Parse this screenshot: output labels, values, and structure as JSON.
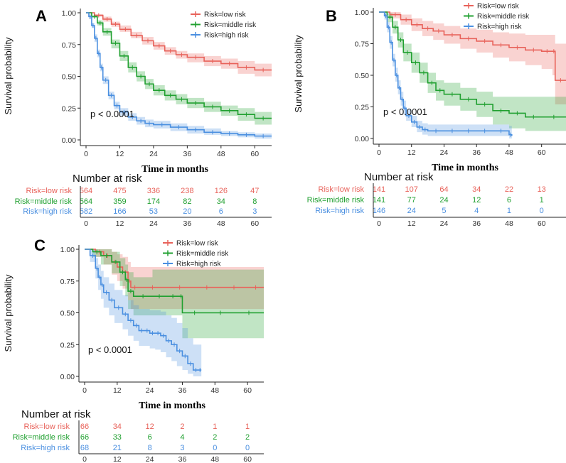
{
  "colors": {
    "low": "#E8625A",
    "middle": "#20A030",
    "high": "#4A8FE0"
  },
  "chart_data": [
    {
      "panel": "A",
      "type": "line",
      "title": "",
      "ylabel": "Survival probability",
      "xlabel": "Time in months",
      "xlim": [
        0,
        66
      ],
      "ylim": [
        0,
        1
      ],
      "xticks": [
        0,
        12,
        24,
        36,
        48,
        60
      ],
      "yticks": [
        "0.00",
        "0.25",
        "0.50",
        "0.75",
        "1.00"
      ],
      "pvalue": "p < 0.0001",
      "legend": [
        "Risk=low risk",
        "Risk=middle risk",
        "Risk=high risk"
      ],
      "series": [
        {
          "name": "Risk=low risk",
          "key": "low",
          "x": [
            0,
            3,
            6,
            9,
            12,
            16,
            20,
            24,
            28,
            32,
            36,
            42,
            48,
            54,
            60,
            66
          ],
          "y": [
            1,
            0.98,
            0.95,
            0.91,
            0.87,
            0.82,
            0.78,
            0.74,
            0.7,
            0.67,
            0.65,
            0.62,
            0.6,
            0.57,
            0.55,
            0.55
          ],
          "lower": [
            1,
            0.97,
            0.93,
            0.89,
            0.85,
            0.8,
            0.75,
            0.71,
            0.67,
            0.64,
            0.61,
            0.58,
            0.56,
            0.52,
            0.5,
            0.5
          ],
          "upper": [
            1,
            0.99,
            0.97,
            0.93,
            0.9,
            0.85,
            0.81,
            0.77,
            0.73,
            0.7,
            0.68,
            0.66,
            0.64,
            0.62,
            0.6,
            0.6
          ]
        },
        {
          "name": "Risk=middle risk",
          "key": "middle",
          "x": [
            0,
            2,
            4,
            6,
            9,
            12,
            15,
            18,
            21,
            24,
            28,
            32,
            36,
            42,
            48,
            54,
            60,
            66
          ],
          "y": [
            1,
            0.97,
            0.92,
            0.85,
            0.76,
            0.66,
            0.57,
            0.5,
            0.44,
            0.39,
            0.35,
            0.32,
            0.29,
            0.26,
            0.23,
            0.2,
            0.17,
            0.17
          ],
          "lower": [
            1,
            0.96,
            0.9,
            0.82,
            0.72,
            0.62,
            0.53,
            0.46,
            0.4,
            0.35,
            0.31,
            0.28,
            0.25,
            0.22,
            0.19,
            0.15,
            0.12,
            0.12
          ],
          "upper": [
            1,
            0.98,
            0.94,
            0.88,
            0.79,
            0.7,
            0.61,
            0.54,
            0.48,
            0.43,
            0.39,
            0.36,
            0.33,
            0.3,
            0.27,
            0.25,
            0.22,
            0.22
          ]
        },
        {
          "name": "Risk=high risk",
          "key": "high",
          "x": [
            0,
            1,
            2,
            3,
            4,
            5,
            6,
            8,
            10,
            12,
            15,
            18,
            21,
            24,
            30,
            36,
            42,
            48,
            54,
            60,
            66
          ],
          "y": [
            1,
            0.97,
            0.9,
            0.8,
            0.68,
            0.57,
            0.47,
            0.35,
            0.27,
            0.22,
            0.18,
            0.15,
            0.13,
            0.12,
            0.1,
            0.08,
            0.06,
            0.05,
            0.04,
            0.03,
            0.03
          ],
          "lower": [
            1,
            0.95,
            0.88,
            0.77,
            0.65,
            0.54,
            0.44,
            0.32,
            0.24,
            0.19,
            0.15,
            0.12,
            0.1,
            0.09,
            0.07,
            0.05,
            0.04,
            0.03,
            0.02,
            0.01,
            0.01
          ],
          "upper": [
            1,
            0.98,
            0.92,
            0.83,
            0.71,
            0.6,
            0.5,
            0.38,
            0.3,
            0.25,
            0.21,
            0.18,
            0.16,
            0.15,
            0.13,
            0.11,
            0.09,
            0.07,
            0.06,
            0.05,
            0.05
          ]
        }
      ],
      "risk_table": {
        "title": "Number at risk",
        "rows": [
          {
            "label": "Risk=low risk",
            "key": "low",
            "values": [
              "564",
              "475",
              "336",
              "238",
              "126",
              "47"
            ]
          },
          {
            "label": "Risk=middle risk",
            "key": "middle",
            "values": [
              "564",
              "359",
              "174",
              "82",
              "34",
              "8"
            ]
          },
          {
            "label": "Risk=high risk",
            "key": "high",
            "values": [
              "582",
              "166",
              "53",
              "20",
              "6",
              "3"
            ]
          }
        ]
      }
    },
    {
      "panel": "B",
      "type": "line",
      "title": "",
      "ylabel": "Survival probability",
      "xlabel": "Time in months",
      "xlim": [
        0,
        69
      ],
      "ylim": [
        0,
        1
      ],
      "xticks": [
        0,
        12,
        24,
        36,
        48,
        60
      ],
      "yticks": [
        "0.00",
        "0.25",
        "0.50",
        "0.75",
        "1.00"
      ],
      "pvalue": "p < 0.0001",
      "legend": [
        "Risk=low risk",
        "Risk=middle risk",
        "Risk=high risk"
      ],
      "series": [
        {
          "name": "Risk=low risk",
          "key": "low",
          "x": [
            0,
            4,
            8,
            12,
            16,
            20,
            24,
            30,
            36,
            42,
            48,
            54,
            60,
            64,
            65,
            69
          ],
          "y": [
            1,
            0.98,
            0.94,
            0.9,
            0.87,
            0.85,
            0.82,
            0.79,
            0.77,
            0.74,
            0.72,
            0.7,
            0.69,
            0.69,
            0.46,
            0.46
          ],
          "lower": [
            1,
            0.95,
            0.9,
            0.85,
            0.81,
            0.78,
            0.75,
            0.71,
            0.68,
            0.64,
            0.61,
            0.58,
            0.55,
            0.5,
            0.27,
            0.27
          ],
          "upper": [
            1,
            1.0,
            0.98,
            0.95,
            0.93,
            0.91,
            0.89,
            0.87,
            0.86,
            0.84,
            0.83,
            0.82,
            0.82,
            0.82,
            0.75,
            0.75
          ]
        },
        {
          "name": "Risk=middle risk",
          "key": "middle",
          "x": [
            0,
            3,
            5,
            7,
            9,
            12,
            15,
            18,
            21,
            24,
            30,
            36,
            42,
            48,
            54,
            60,
            69
          ],
          "y": [
            1,
            0.96,
            0.88,
            0.78,
            0.68,
            0.6,
            0.52,
            0.44,
            0.38,
            0.35,
            0.31,
            0.27,
            0.22,
            0.2,
            0.17,
            0.17,
            0.17
          ],
          "lower": [
            1,
            0.92,
            0.83,
            0.72,
            0.61,
            0.52,
            0.44,
            0.36,
            0.3,
            0.26,
            0.22,
            0.17,
            0.11,
            0.08,
            0.06,
            0.06,
            0.06
          ],
          "upper": [
            1,
            0.99,
            0.93,
            0.84,
            0.75,
            0.68,
            0.6,
            0.52,
            0.46,
            0.44,
            0.4,
            0.37,
            0.33,
            0.33,
            0.33,
            0.33,
            0.33
          ]
        },
        {
          "name": "Risk=high risk",
          "key": "high",
          "x": [
            0,
            2,
            3,
            4,
            5,
            6,
            7,
            8,
            9,
            10,
            12,
            14,
            16,
            18,
            24,
            30,
            36,
            42,
            48,
            49
          ],
          "y": [
            1,
            0.97,
            0.88,
            0.76,
            0.62,
            0.5,
            0.4,
            0.31,
            0.24,
            0.18,
            0.13,
            0.09,
            0.07,
            0.06,
            0.06,
            0.06,
            0.06,
            0.06,
            0.03,
            0.02
          ],
          "lower": [
            1,
            0.94,
            0.84,
            0.71,
            0.57,
            0.45,
            0.35,
            0.26,
            0.19,
            0.14,
            0.09,
            0.05,
            0.03,
            0.02,
            0.02,
            0.02,
            0.02,
            0.02,
            0.0,
            0.0
          ],
          "upper": [
            1,
            1.0,
            0.92,
            0.81,
            0.67,
            0.56,
            0.46,
            0.37,
            0.3,
            0.23,
            0.18,
            0.14,
            0.12,
            0.11,
            0.11,
            0.11,
            0.11,
            0.11,
            0.1,
            0.1
          ]
        }
      ],
      "risk_table": {
        "title": "Number at risk",
        "rows": [
          {
            "label": "Risk=low risk",
            "key": "low",
            "values": [
              "141",
              "107",
              "64",
              "34",
              "22",
              "13"
            ]
          },
          {
            "label": "Risk=middle risk",
            "key": "middle",
            "values": [
              "141",
              "77",
              "24",
              "12",
              "6",
              "1"
            ]
          },
          {
            "label": "Risk=high risk",
            "key": "high",
            "values": [
              "146",
              "24",
              "5",
              "4",
              "1",
              "0"
            ]
          }
        ]
      }
    },
    {
      "panel": "C",
      "type": "line",
      "title": "",
      "ylabel": "Survival probability",
      "xlabel": "Time in months",
      "xlim": [
        0,
        66
      ],
      "ylim": [
        0,
        1
      ],
      "xticks": [
        0,
        12,
        24,
        36,
        48,
        60
      ],
      "yticks": [
        "0.00",
        "0.25",
        "0.50",
        "0.75",
        "1.00"
      ],
      "pvalue": "p < 0.0001",
      "legend": [
        "Risk=low risk",
        "Risk=middle risk",
        "Risk=high risk"
      ],
      "series": [
        {
          "name": "Risk=low risk",
          "key": "low",
          "x": [
            0,
            4,
            7,
            10,
            12,
            14,
            16,
            17,
            20,
            30,
            40,
            50,
            60,
            66
          ],
          "y": [
            1,
            0.98,
            0.95,
            0.9,
            0.86,
            0.82,
            0.75,
            0.7,
            0.7,
            0.7,
            0.7,
            0.7,
            0.7,
            0.7
          ],
          "lower": [
            1,
            0.94,
            0.88,
            0.8,
            0.75,
            0.69,
            0.6,
            0.53,
            0.53,
            0.53,
            0.53,
            0.53,
            0.53,
            0.53
          ],
          "upper": [
            1,
            1.0,
            1.0,
            0.98,
            0.96,
            0.94,
            0.9,
            0.86,
            0.86,
            0.86,
            0.86,
            0.86,
            0.86,
            0.86
          ]
        },
        {
          "name": "Risk=middle risk",
          "key": "middle",
          "x": [
            0,
            3,
            6,
            10,
            13,
            15,
            16,
            18,
            25,
            30,
            35,
            36,
            45,
            55,
            66
          ],
          "y": [
            1,
            0.98,
            0.95,
            0.9,
            0.82,
            0.76,
            0.67,
            0.63,
            0.63,
            0.63,
            0.63,
            0.5,
            0.5,
            0.5,
            0.5
          ],
          "lower": [
            1,
            0.94,
            0.88,
            0.81,
            0.71,
            0.63,
            0.53,
            0.48,
            0.48,
            0.48,
            0.48,
            0.3,
            0.3,
            0.3,
            0.3
          ],
          "upper": [
            1,
            1.0,
            1.0,
            0.98,
            0.93,
            0.88,
            0.82,
            0.78,
            0.84,
            0.84,
            0.84,
            0.84,
            0.84,
            0.84,
            0.84
          ]
        },
        {
          "name": "Risk=high risk",
          "key": "high",
          "x": [
            0,
            2,
            4,
            5,
            6,
            7,
            9,
            11,
            14,
            16,
            18,
            20,
            22,
            24,
            26,
            28,
            30,
            32,
            34,
            36,
            38,
            40,
            42,
            43
          ],
          "y": [
            1,
            0.95,
            0.85,
            0.78,
            0.72,
            0.66,
            0.6,
            0.54,
            0.49,
            0.44,
            0.4,
            0.36,
            0.36,
            0.34,
            0.34,
            0.32,
            0.28,
            0.25,
            0.2,
            0.16,
            0.1,
            0.05,
            0.05,
            0.05
          ],
          "lower": [
            1,
            0.9,
            0.77,
            0.68,
            0.61,
            0.54,
            0.48,
            0.42,
            0.37,
            0.32,
            0.28,
            0.24,
            0.24,
            0.22,
            0.21,
            0.19,
            0.15,
            0.12,
            0.08,
            0.05,
            0.02,
            0.0,
            0.0,
            0.0
          ],
          "upper": [
            1,
            1.0,
            0.93,
            0.88,
            0.83,
            0.78,
            0.73,
            0.68,
            0.64,
            0.6,
            0.56,
            0.53,
            0.53,
            0.52,
            0.52,
            0.51,
            0.48,
            0.46,
            0.42,
            0.38,
            0.3,
            0.25,
            0.25,
            0.25
          ]
        }
      ],
      "risk_table": {
        "title": "Number at risk",
        "rows": [
          {
            "label": "Risk=low risk",
            "key": "low",
            "values": [
              "66",
              "34",
              "12",
              "2",
              "1",
              "1"
            ]
          },
          {
            "label": "Risk=middle risk",
            "key": "middle",
            "values": [
              "66",
              "33",
              "6",
              "4",
              "2",
              "2"
            ]
          },
          {
            "label": "Risk=high risk",
            "key": "high",
            "values": [
              "68",
              "21",
              "8",
              "3",
              "0",
              "0"
            ]
          }
        ]
      }
    }
  ]
}
